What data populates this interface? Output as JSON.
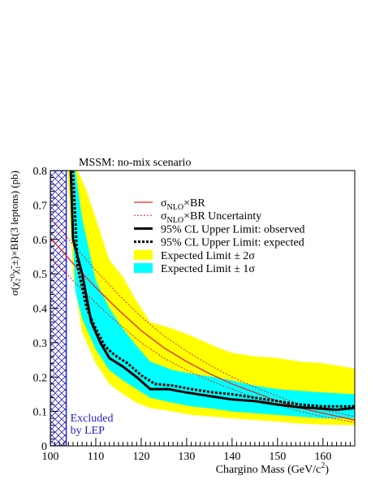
{
  "chart_data": {
    "type": "line",
    "title": "MSSM: no-mix scenario",
    "xlabel": "Chargino Mass (GeV/c",
    "xlabel_sup": "2",
    "xlabel_tail": ")",
    "ylabel": "σ(χ̃₂⁰χ̃₁±)×BR(3 leptons) (pb)",
    "xlim": [
      100,
      167
    ],
    "ylim": [
      0,
      0.8
    ],
    "x_ticks": [
      100,
      110,
      120,
      130,
      140,
      150,
      160
    ],
    "y_ticks": [
      0,
      0.1,
      0.2,
      0.3,
      0.4,
      0.5,
      0.6,
      0.7,
      0.8
    ],
    "excluded_region": {
      "x": [
        100,
        103.5
      ],
      "label_line1": "Excluded",
      "label_line2": "by LEP",
      "color": "#2222cc"
    },
    "legend": {
      "position": "top-right",
      "entries": [
        {
          "key": "sigma",
          "text": "σ",
          "sub": "NLO",
          "tail": "×BR"
        },
        {
          "key": "sigma_unc",
          "text": "σ",
          "sub": "NLO",
          "tail": "×BR Uncertainty"
        },
        {
          "key": "observed",
          "text": "95% CL Upper Limit: observed"
        },
        {
          "key": "expected",
          "text": "95% CL Upper Limit: expected"
        },
        {
          "key": "band2",
          "text": "Expected Limit ± 2σ"
        },
        {
          "key": "band1",
          "text": "Expected Limit ± 1σ"
        }
      ]
    },
    "colors": {
      "band2": "#ffff00",
      "band1": "#00ffff",
      "sigma": "#ee2222",
      "limit": "#000000"
    },
    "series": {
      "sigma": {
        "x": [
          100,
          105,
          110,
          115,
          120,
          125,
          130,
          135,
          140,
          145,
          150,
          155,
          160,
          167
        ],
        "y": [
          0.605,
          0.53,
          0.46,
          0.395,
          0.335,
          0.285,
          0.245,
          0.21,
          0.18,
          0.155,
          0.13,
          0.11,
          0.095,
          0.075
        ]
      },
      "sigma_up": {
        "x": [
          100,
          105,
          110,
          115,
          120,
          125,
          130,
          135,
          140,
          145,
          150,
          155,
          160,
          167
        ],
        "y": [
          0.665,
          0.585,
          0.51,
          0.44,
          0.375,
          0.32,
          0.275,
          0.235,
          0.2,
          0.17,
          0.145,
          0.12,
          0.105,
          0.085
        ]
      },
      "sigma_down": {
        "x": [
          100,
          105,
          110,
          115,
          120,
          125,
          130,
          135,
          140,
          145,
          150,
          155,
          160,
          167
        ],
        "y": [
          0.55,
          0.48,
          0.415,
          0.355,
          0.3,
          0.255,
          0.22,
          0.19,
          0.165,
          0.14,
          0.12,
          0.1,
          0.085,
          0.068
        ]
      },
      "observed": {
        "x": [
          104.5,
          105,
          107,
          109,
          111,
          113,
          116,
          119,
          122,
          126,
          130,
          135,
          140,
          145,
          150,
          155,
          160,
          163,
          167
        ],
        "y": [
          0.8,
          0.6,
          0.5,
          0.36,
          0.3,
          0.255,
          0.23,
          0.2,
          0.165,
          0.165,
          0.155,
          0.145,
          0.135,
          0.13,
          0.12,
          0.112,
          0.108,
          0.105,
          0.11
        ]
      },
      "expected": {
        "x": [
          105,
          106,
          108,
          110,
          112,
          114,
          117,
          120,
          123,
          127,
          131,
          136,
          140,
          145,
          150,
          155,
          160,
          167
        ],
        "y": [
          0.8,
          0.52,
          0.4,
          0.34,
          0.29,
          0.265,
          0.24,
          0.205,
          0.18,
          0.175,
          0.165,
          0.155,
          0.15,
          0.14,
          0.13,
          0.12,
          0.115,
          0.115
        ]
      },
      "band2_upper": {
        "x": [
          106,
          108,
          110,
          113,
          116,
          119,
          122,
          127,
          131,
          136,
          140,
          145,
          150,
          155,
          160,
          167
        ],
        "y": [
          0.8,
          0.74,
          0.66,
          0.54,
          0.49,
          0.42,
          0.36,
          0.34,
          0.32,
          0.29,
          0.27,
          0.26,
          0.255,
          0.245,
          0.24,
          0.225
        ]
      },
      "band2_lower": {
        "x": [
          103.8,
          105,
          107,
          110,
          113,
          116,
          119,
          122,
          127,
          131,
          136,
          140,
          145,
          150,
          155,
          160,
          167
        ],
        "y": [
          0.8,
          0.5,
          0.33,
          0.24,
          0.18,
          0.15,
          0.125,
          0.11,
          0.1,
          0.09,
          0.085,
          0.08,
          0.075,
          0.07,
          0.065,
          0.062,
          0.06
        ]
      },
      "band1_upper": {
        "x": [
          105.5,
          107,
          110,
          113,
          116,
          119,
          122,
          127,
          131,
          136,
          140,
          145,
          150,
          155,
          160,
          167
        ],
        "y": [
          0.8,
          0.66,
          0.48,
          0.4,
          0.34,
          0.29,
          0.245,
          0.22,
          0.21,
          0.2,
          0.19,
          0.175,
          0.165,
          0.16,
          0.155,
          0.15
        ]
      },
      "band1_lower": {
        "x": [
          104.2,
          105.5,
          107,
          110,
          113,
          116,
          119,
          122,
          127,
          131,
          136,
          140,
          145,
          150,
          155,
          160,
          167
        ],
        "y": [
          0.8,
          0.45,
          0.37,
          0.28,
          0.22,
          0.19,
          0.165,
          0.14,
          0.125,
          0.115,
          0.108,
          0.1,
          0.095,
          0.09,
          0.085,
          0.08,
          0.08
        ]
      }
    }
  }
}
